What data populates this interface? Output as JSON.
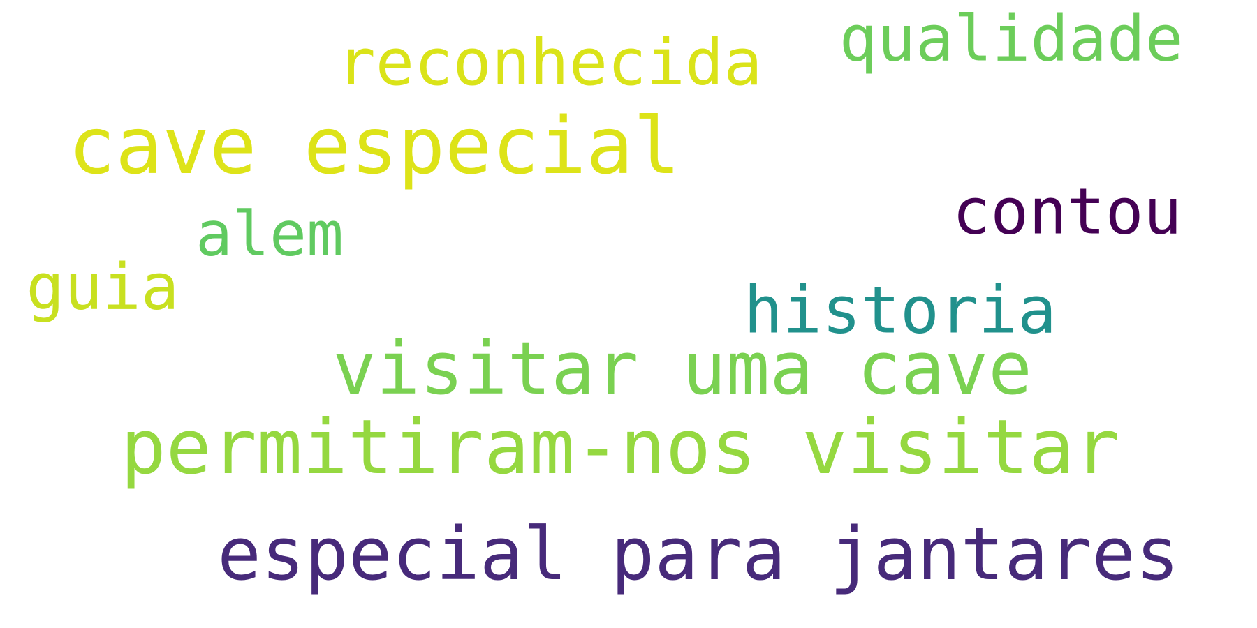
{
  "wordcloud": {
    "words": [
      {
        "text": "permitiram-nos visitar",
        "color": "#95d840"
      },
      {
        "text": "especial para jantares",
        "color": "#472a7a"
      },
      {
        "text": "visitar uma cave",
        "color": "#7ad151"
      },
      {
        "text": "cave especial",
        "color": "#dde318"
      },
      {
        "text": "reconhecida",
        "color": "#dae319"
      },
      {
        "text": "qualidade",
        "color": "#6ccd5a"
      },
      {
        "text": "contou",
        "color": "#440154"
      },
      {
        "text": "historia",
        "color": "#21918c"
      },
      {
        "text": "alem",
        "color": "#60ca60"
      },
      {
        "text": "guia",
        "color": "#c8e020"
      }
    ]
  }
}
